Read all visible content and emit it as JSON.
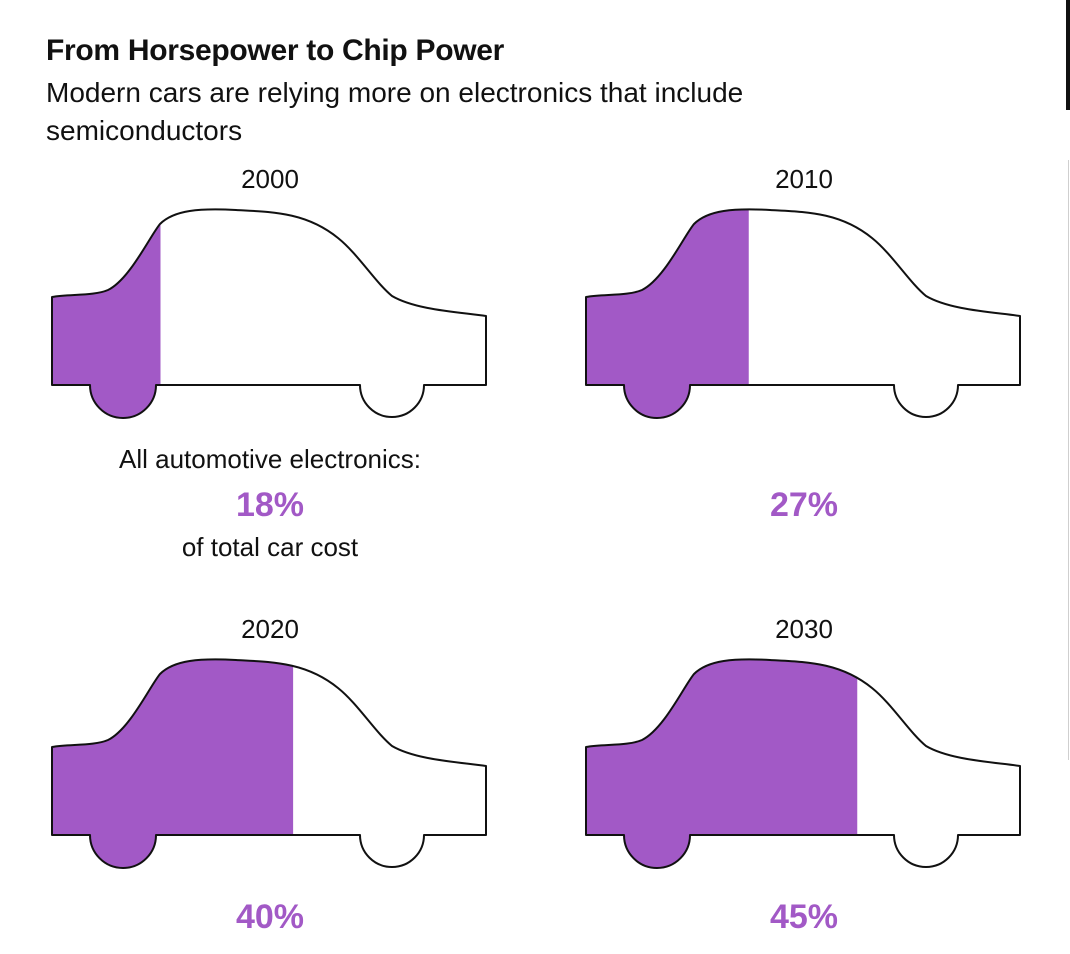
{
  "header": {
    "title": "From Horsepower to Chip Power",
    "subtitle": "Modern cars are relying more on electronics that include semiconductors"
  },
  "accent_color": "#a259c6",
  "chart_data": {
    "type": "other",
    "title": "From Horsepower to Chip Power",
    "subtitle": "Modern cars are relying more on electronics that include semiconductors",
    "annotation_lead": "All automotive electronics:",
    "annotation_tail": "of total car cost",
    "categories": [
      "2000",
      "2010",
      "2020",
      "2030"
    ],
    "values": [
      18,
      27,
      40,
      45
    ],
    "labels": [
      "18%",
      "27%",
      "40%",
      "45%"
    ],
    "unit": "% of total car cost"
  }
}
